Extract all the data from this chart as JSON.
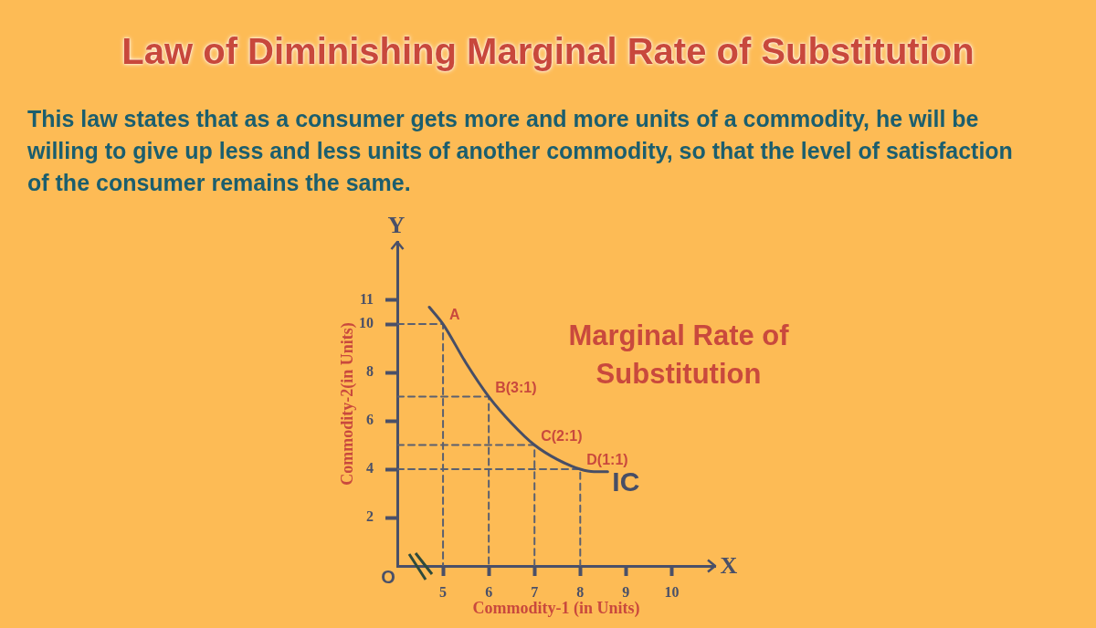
{
  "chart_data": {
    "type": "line",
    "title": "Law of Diminishing Marginal Rate of Substitution",
    "subtitle": "This law states that as a consumer gets more and more units of a commodity, he will be willing to give up less and less units of another commodity, so that the level of satisfaction of the consumer remains the same.",
    "xlabel": "Commodity-1 (in Units)",
    "ylabel": "Commodity-2(in Units)",
    "xlim": [
      4,
      10.95
    ],
    "xticks": [
      5,
      6,
      7,
      8,
      9,
      10
    ],
    "ylim": [
      0,
      13.4
    ],
    "yticks": [
      2,
      4,
      6,
      8,
      10,
      11
    ],
    "marker": "none",
    "line_style": "solid",
    "series": [
      {
        "name": "IC",
        "color": "#474e66",
        "x": [
          4.7,
          5,
          5.5,
          6,
          6.5,
          7,
          7.5,
          8,
          8.3,
          8.6
        ],
        "values": [
          10.7,
          10,
          8.4,
          7,
          5.9,
          5,
          4.4,
          4,
          3.9,
          3.9
        ]
      },
      {
        "color": "#5b6070",
        "line_style": "dashed",
        "x": [
          4,
          5,
          5
        ],
        "values": [
          10,
          10,
          0
        ]
      },
      {
        "color": "#5b6070",
        "line_style": "dashed",
        "x": [
          4,
          6,
          6
        ],
        "values": [
          7,
          7,
          0
        ]
      },
      {
        "color": "#5b6070",
        "line_style": "dashed",
        "x": [
          4,
          7,
          7
        ],
        "values": [
          5,
          5,
          0
        ]
      },
      {
        "color": "#5b6070",
        "line_style": "dashed",
        "x": [
          4,
          8,
          8
        ],
        "values": [
          4,
          4,
          0
        ]
      }
    ],
    "annotations": [
      {
        "text": "A",
        "x": 5,
        "y": 10
      },
      {
        "text": "B(3:1)",
        "x": 6,
        "y": 7
      },
      {
        "text": "C(2:1)",
        "x": 7,
        "y": 5
      },
      {
        "text": "D(1:1)",
        "x": 8,
        "y": 4
      },
      "Marginal Rate of Substitution",
      "X",
      "Y",
      "O"
    ]
  }
}
